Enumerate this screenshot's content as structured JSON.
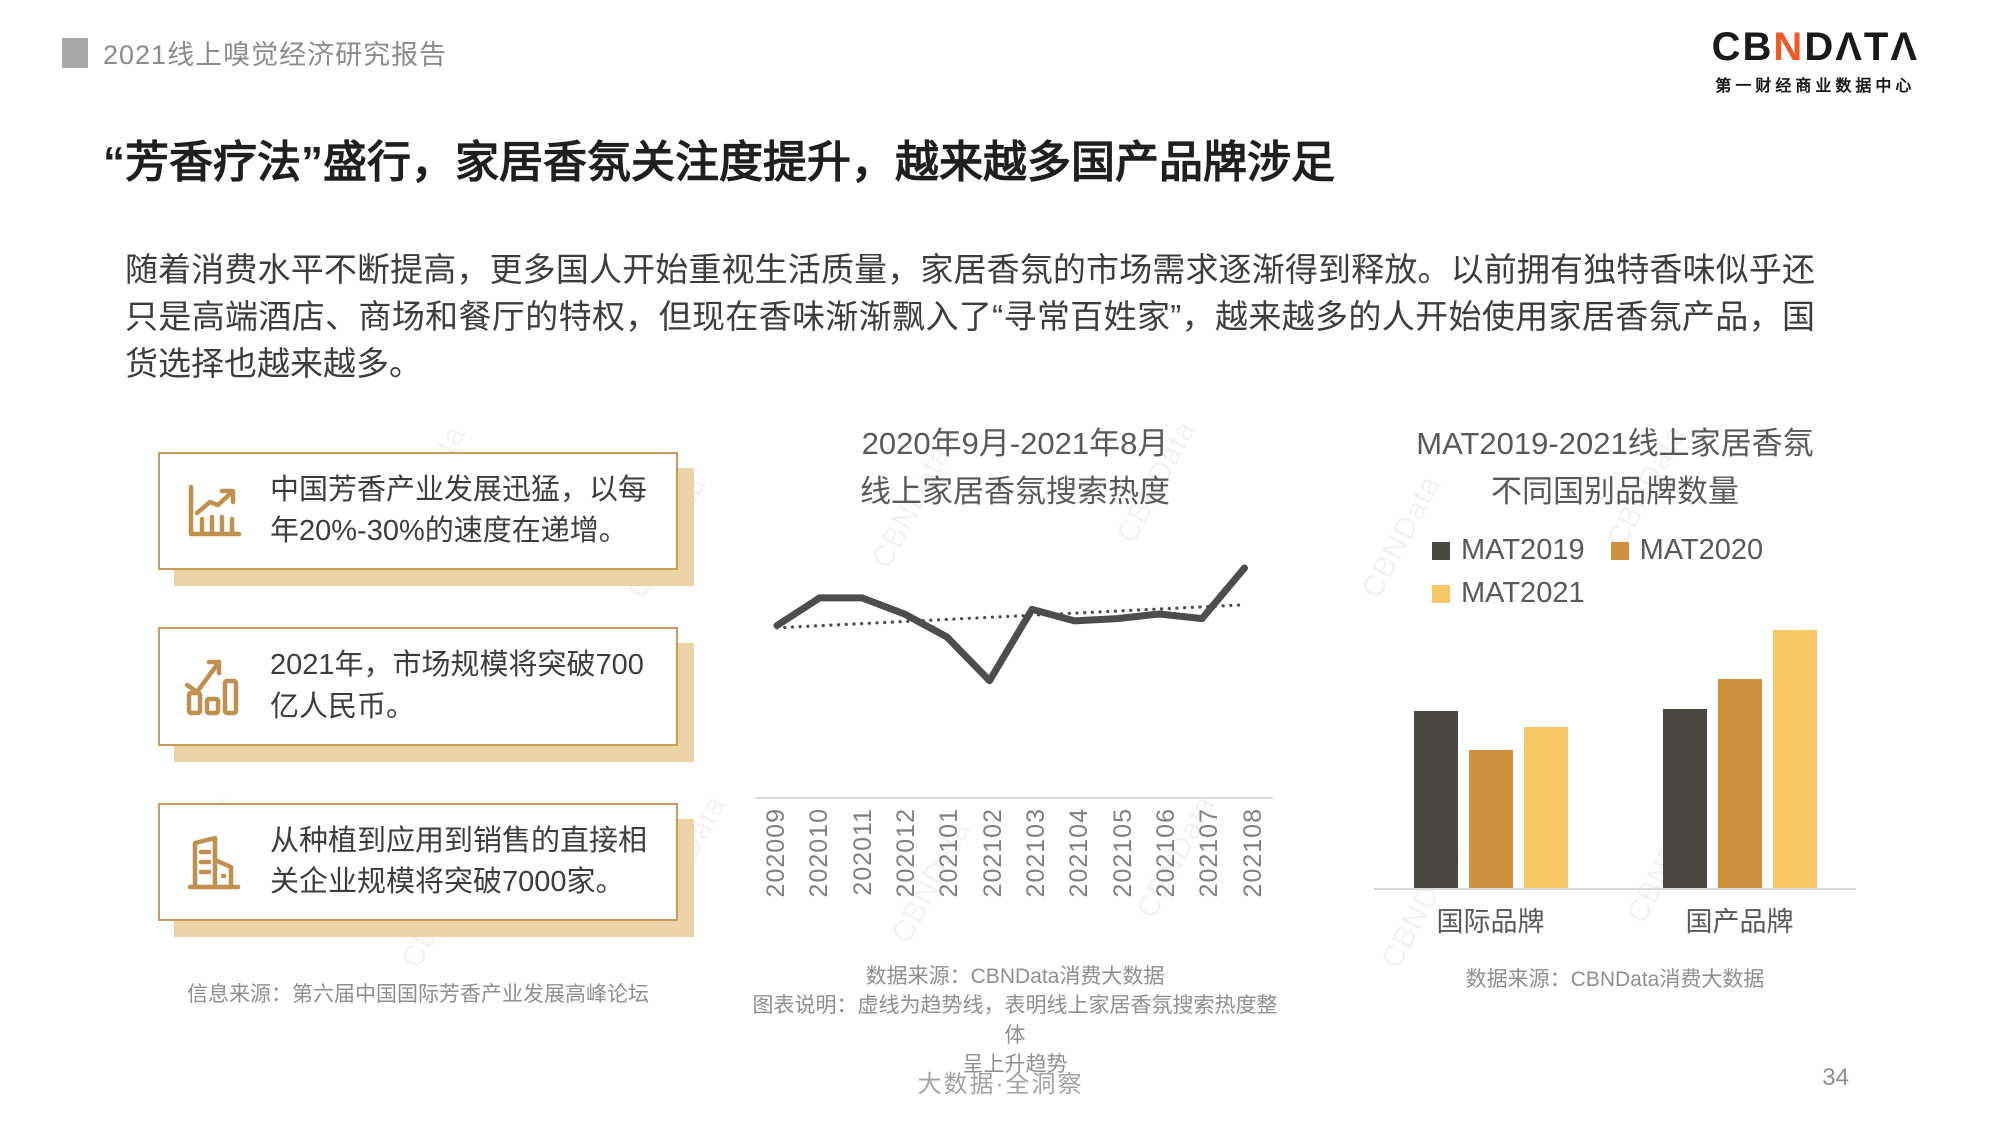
{
  "header": {
    "report_title": "2021线上嗅觉经济研究报告"
  },
  "logo": {
    "prefix": "CB",
    "accent": "N",
    "suffix": "DΛTΛ",
    "subtitle": "第一财经商业数据中心",
    "accent_color": "#f15a24"
  },
  "main_title": "“芳香疗法”盛行，家居香氛关注度提升，越来越多国产品牌涉足",
  "intro": "随着消费水平不断提高，更多国人开始重视生活质量，家居香氛的市场需求逐渐得到释放。以前拥有独特香味似乎还只是高端酒店、商场和餐厅的特权，但现在香味渐渐飘入了“寻常百姓家”，越来越多的人开始使用家居香氛产品，国货选择也越来越多。",
  "facts": [
    {
      "icon": "line-chart-growth-icon",
      "text": "中国芳香产业发展迅猛，以每年20%-30%的速度在递增。"
    },
    {
      "icon": "bar-chart-check-icon",
      "text": "2021年，市场规模将突破700亿人民币。"
    },
    {
      "icon": "buildings-icon",
      "text": "从种植到应用到销售的直接相关企业规模将突破7000家。"
    }
  ],
  "facts_source": "信息来源：第六届中国国际芳香产业发展高峰论坛",
  "accent_colors": {
    "box_border": "#c79b5f",
    "box_shadow": "#eed3a9",
    "icon_tan": "#c0904e"
  },
  "chart_data": [
    {
      "type": "line",
      "title_line1": "2020年9月-2021年8月",
      "title_line2": "线上家居香氛搜索热度",
      "categories": [
        "202009",
        "202010",
        "202011",
        "202012",
        "202101",
        "202102",
        "202103",
        "202104",
        "202105",
        "202106",
        "202107",
        "202108"
      ],
      "values": [
        75,
        87,
        87,
        80,
        70,
        51,
        82,
        77,
        78,
        80,
        78,
        100
      ],
      "values_note": "相对搜索热度，图中未标数值轴，数值为按像素估算",
      "trend": {
        "start": 74,
        "end": 84,
        "style": "dotted"
      },
      "line_color": "#4d4d4d",
      "axis_color": "#d9d9d9",
      "grid": false,
      "source": "数据来源：CBNData消费大数据",
      "caption_line1": "图表说明：虚线为趋势线，表明线上家居香氛搜索热度整体",
      "caption_line2": "呈上升趋势"
    },
    {
      "type": "bar",
      "title_line1": "MAT2019-2021线上家居香氛",
      "title_line2": "不同国别品牌数量",
      "categories": [
        "国际品牌",
        "国产品牌"
      ],
      "series": [
        {
          "name": "MAT2019",
          "color": "#4a4642",
          "values": [
            100,
            101
          ]
        },
        {
          "name": "MAT2020",
          "color": "#d0913f",
          "values": [
            78,
            118
          ]
        },
        {
          "name": "MAT2021",
          "color": "#f6c765",
          "values": [
            91,
            146
          ]
        }
      ],
      "values_note": "图中未标数值轴，数值为按像素估算的相对值",
      "legend_position": "top",
      "grid": false,
      "source": "数据来源：CBNData消费大数据"
    }
  ],
  "footer": {
    "slogan": "大数据·全洞察",
    "page_number": "34"
  },
  "watermark": "CBNData"
}
